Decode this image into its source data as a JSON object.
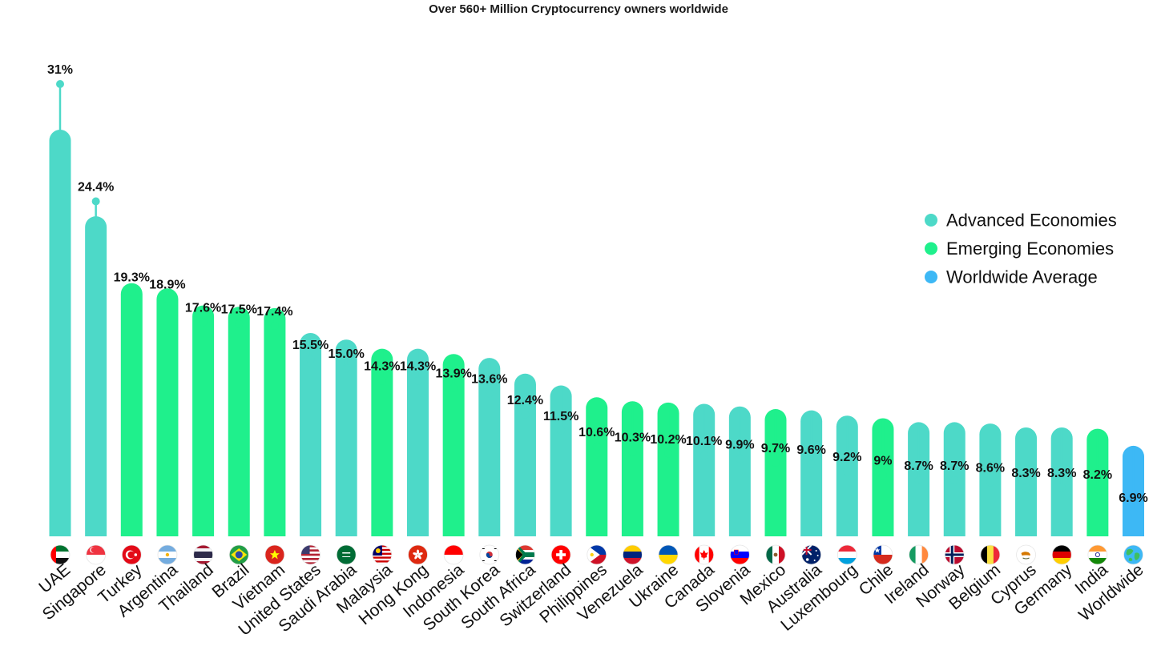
{
  "chart_data": {
    "type": "bar",
    "title": "Over 560+ Million Cryptocurrency owners worldwide",
    "xlabel": "",
    "ylabel": "",
    "ylim": [
      0,
      31
    ],
    "grid": false,
    "legend_position": "top-right",
    "legend": [
      {
        "key": "advanced",
        "label": "Advanced Economies"
      },
      {
        "key": "emerging",
        "label": "Emerging Economies"
      },
      {
        "key": "worldwide",
        "label": "Worldwide Average"
      }
    ],
    "colors": {
      "advanced": "#4dd9c8",
      "emerging": "#1ff08c",
      "worldwide": "#3db8f5",
      "text": "#111111"
    },
    "categories": [
      "UAE",
      "Singapore",
      "Turkey",
      "Argentina",
      "Thailand",
      "Brazil",
      "Vietnam",
      "United States",
      "Saudi Arabia",
      "Malaysia",
      "Hong Kong",
      "Indonesia",
      "South Korea",
      "South Africa",
      "Switzerland",
      "Philippines",
      "Venezuela",
      "Ukraine",
      "Canada",
      "Slovenia",
      "Mexico",
      "Australia",
      "Luxembourg",
      "Chile",
      "Ireland",
      "Norway",
      "Belgium",
      "Cyprus",
      "Germany",
      "India",
      "Worldwide"
    ],
    "values": [
      31,
      24.4,
      19.3,
      18.9,
      17.6,
      17.5,
      17.4,
      15.5,
      15.0,
      14.3,
      14.3,
      13.9,
      13.6,
      12.4,
      11.5,
      10.6,
      10.3,
      10.2,
      10.1,
      9.9,
      9.7,
      9.6,
      9.2,
      9,
      8.7,
      8.7,
      8.6,
      8.3,
      8.3,
      8.2,
      6.9
    ],
    "value_labels": [
      "31%",
      "24.4%",
      "19.3%",
      "18.9%",
      "17.6%",
      "17.5%",
      "17.4%",
      "15.5%",
      "15.0%",
      "14.3%",
      "14.3%",
      "13.9%",
      "13.6%",
      "12.4%",
      "11.5%",
      "10.6%",
      "10.3%",
      "10.2%",
      "10.1%",
      "9.9%",
      "9.7%",
      "9.6%",
      "9.2%",
      "9%",
      "8.7%",
      "8.7%",
      "8.6%",
      "8.3%",
      "8.3%",
      "8.2%",
      "6.9%"
    ],
    "groups": [
      "advanced",
      "advanced",
      "emerging",
      "emerging",
      "emerging",
      "emerging",
      "emerging",
      "advanced",
      "advanced",
      "emerging",
      "advanced",
      "emerging",
      "advanced",
      "advanced",
      "advanced",
      "emerging",
      "emerging",
      "emerging",
      "advanced",
      "advanced",
      "emerging",
      "advanced",
      "advanced",
      "emerging",
      "advanced",
      "advanced",
      "advanced",
      "advanced",
      "advanced",
      "emerging",
      "worldwide"
    ],
    "flag_icons": [
      "uae-flag-icon",
      "singapore-flag-icon",
      "turkey-flag-icon",
      "argentina-flag-icon",
      "thailand-flag-icon",
      "brazil-flag-icon",
      "vietnam-flag-icon",
      "united-states-flag-icon",
      "saudi-arabia-flag-icon",
      "malaysia-flag-icon",
      "hong-kong-flag-icon",
      "indonesia-flag-icon",
      "south-korea-flag-icon",
      "south-africa-flag-icon",
      "switzerland-flag-icon",
      "philippines-flag-icon",
      "venezuela-flag-icon",
      "ukraine-flag-icon",
      "canada-flag-icon",
      "slovenia-flag-icon",
      "mexico-flag-icon",
      "australia-flag-icon",
      "luxembourg-flag-icon",
      "chile-flag-icon",
      "ireland-flag-icon",
      "norway-flag-icon",
      "belgium-flag-icon",
      "cyprus-flag-icon",
      "germany-flag-icon",
      "india-flag-icon",
      "globe-icon"
    ]
  }
}
